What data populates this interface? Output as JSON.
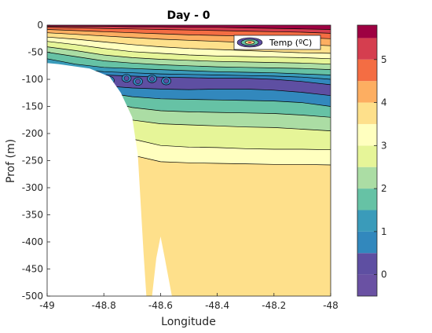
{
  "chart_data": {
    "type": "contour",
    "title": "Day - 0",
    "xlabel": "Longitude",
    "ylabel": "Prof (m)",
    "xlim": [
      -49,
      -48
    ],
    "ylim": [
      -500,
      0
    ],
    "x_ticks": [
      "-49",
      "-48.8",
      "-48.6",
      "-48.4",
      "-48.2",
      "-48"
    ],
    "x_tick_values": [
      -49,
      -48.8,
      -48.6,
      -48.4,
      -48.2,
      -48
    ],
    "y_ticks": [
      "0",
      "-50",
      "-100",
      "-150",
      "-200",
      "-250",
      "-300",
      "-350",
      "-400",
      "-450",
      "-500"
    ],
    "y_tick_values": [
      0,
      -50,
      -100,
      -150,
      -200,
      -250,
      -300,
      -350,
      -400,
      -450,
      -500
    ],
    "legend": {
      "label": "Temp (ºC)",
      "location": "top-right"
    },
    "colorbar": {
      "ticks": [
        "0",
        "1",
        "2",
        "3",
        "4",
        "5"
      ],
      "tick_values": [
        0,
        1,
        2,
        3,
        4,
        5
      ],
      "limits": [
        -0.5,
        5.8
      ],
      "levels": [
        {
          "from": -0.5,
          "to": 0,
          "color": "#6a51a3"
        },
        {
          "from": 0,
          "to": 0.5,
          "color": "#5e4fa2"
        },
        {
          "from": 0.5,
          "to": 1,
          "color": "#3288bd"
        },
        {
          "from": 1,
          "to": 1.5,
          "color": "#3a9bba"
        },
        {
          "from": 1.5,
          "to": 2,
          "color": "#66c2a5"
        },
        {
          "from": 2,
          "to": 2.5,
          "color": "#abdda4"
        },
        {
          "from": 2.5,
          "to": 3,
          "color": "#e6f598"
        },
        {
          "from": 3,
          "to": 3.5,
          "color": "#ffffbf"
        },
        {
          "from": 3.5,
          "to": 4,
          "color": "#fee08b"
        },
        {
          "from": 4,
          "to": 4.5,
          "color": "#fdae61"
        },
        {
          "from": 4.5,
          "to": 5,
          "color": "#f46d43"
        },
        {
          "from": 5,
          "to": 5.5,
          "color": "#d53e4f"
        },
        {
          "from": 5.5,
          "to": 5.8,
          "color": "#9e0142"
        }
      ]
    },
    "bathymetry": {
      "note_color_land": "#ffffff",
      "shelf_edge_lon": -48.96,
      "shelf_edge_depth": -70,
      "slope_points": [
        [
          -48.96,
          -70
        ],
        [
          -48.78,
          -95
        ],
        [
          -48.7,
          -150
        ],
        [
          -48.67,
          -240
        ],
        [
          -48.66,
          -500
        ]
      ],
      "seamount_peak": [
        -48.6,
        -390
      ],
      "seamount_base": [
        [
          -48.63,
          -500
        ],
        [
          -48.55,
          -500
        ]
      ]
    },
    "isotherm_depths_by_temp": [
      {
        "temp": 5.5,
        "depth_at_-48": -8
      },
      {
        "temp": 5,
        "depth_at_-48": -15
      },
      {
        "temp": 4.5,
        "depth_at_-48": -25
      },
      {
        "temp": 4,
        "depth_at_-48": -38
      },
      {
        "temp": 3.5,
        "depth_at_-48": -52
      },
      {
        "temp": 3,
        "depth_at_-48": -62
      },
      {
        "temp": 2.5,
        "depth_at_-48": -72
      },
      {
        "temp": 2,
        "depth_at_-48": -82
      },
      {
        "temp": 1.5,
        "depth_at_-48": -92
      },
      {
        "temp": 1,
        "depth_at_-48": -130
      },
      {
        "temp": 1.5,
        "depth_at_-48": -150
      },
      {
        "temp": 2,
        "depth_at_-48": -170
      },
      {
        "temp": 2.5,
        "depth_at_-48": -195
      },
      {
        "temp": 3,
        "depth_at_-48": -230
      },
      {
        "temp": 3.5,
        "depth_at_-48": -258
      }
    ]
  }
}
